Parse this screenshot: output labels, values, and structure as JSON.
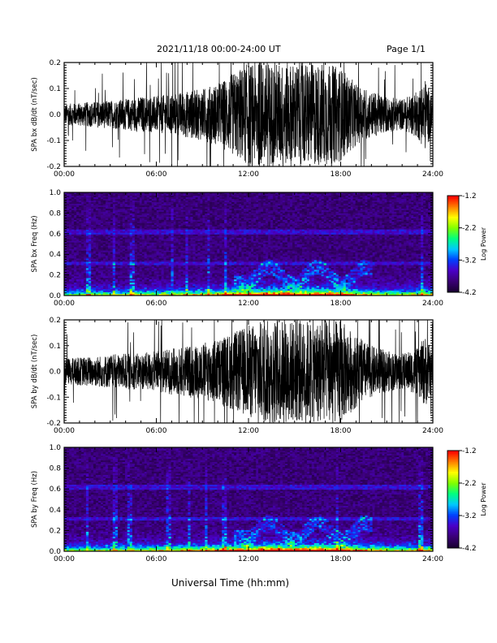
{
  "header": {
    "title": "2021/11/18  00:00-24:00 UT",
    "page": "Page 1/1"
  },
  "footer": {
    "xlabel": "Universal Time (hh:mm)"
  },
  "colors": {
    "trace": "#000000",
    "spectrogram_background": "#1a0a5a",
    "colormap": [
      "#1a0033",
      "#3b0078",
      "#4a00c8",
      "#0040ff",
      "#00c8ff",
      "#00ff80",
      "#80ff00",
      "#ffff00",
      "#ff8000",
      "#ff0000"
    ]
  },
  "chart_data": [
    {
      "type": "line",
      "ylabel": "SPA bx dB/dt (nT/sec)",
      "xlim": [
        "00:00",
        "24:00"
      ],
      "ylim": [
        -0.2,
        0.2
      ],
      "x_tick_labels": [
        "00:00",
        "06:00",
        "12:00",
        "18:00",
        "24:00"
      ],
      "y_tick_labels": [
        "-0.2",
        "-0.1",
        "0.0",
        "0.1",
        "0.2"
      ],
      "amplitude_envelope": {
        "x_hours": [
          0,
          2,
          4,
          5,
          6,
          7,
          8,
          9,
          10,
          11,
          12,
          13,
          14,
          15,
          16,
          17,
          18,
          19,
          20,
          21,
          22,
          23,
          23.5,
          24
        ],
        "y_abs": [
          0.04,
          0.05,
          0.06,
          0.07,
          0.07,
          0.08,
          0.09,
          0.1,
          0.12,
          0.16,
          0.2,
          0.2,
          0.2,
          0.2,
          0.2,
          0.2,
          0.18,
          0.12,
          0.09,
          0.07,
          0.06,
          0.09,
          0.14,
          0.06
        ]
      }
    },
    {
      "type": "heatmap",
      "ylabel": "SPA bx Freq (Hz)",
      "xlim": [
        "00:00",
        "24:00"
      ],
      "ylim": [
        0.0,
        1.0
      ],
      "x_tick_labels": [
        "00:00",
        "06:00",
        "12:00",
        "18:00",
        "24:00"
      ],
      "y_tick_labels": [
        "0.0",
        "0.2",
        "0.4",
        "0.6",
        "0.8",
        "1.0"
      ],
      "colorbar": {
        "label": "Log Power",
        "range": [
          -4.2,
          -1.2
        ],
        "tick_labels": [
          "-1.2",
          "-2.2",
          "-3.2",
          "-4.2"
        ]
      }
    },
    {
      "type": "line",
      "ylabel": "SPA by dB/dt (nT/sec)",
      "xlim": [
        "00:00",
        "24:00"
      ],
      "ylim": [
        -0.2,
        0.2
      ],
      "x_tick_labels": [
        "00:00",
        "06:00",
        "12:00",
        "18:00",
        "24:00"
      ],
      "y_tick_labels": [
        "-0.2",
        "-0.1",
        "0.0",
        "0.1",
        "0.2"
      ],
      "amplitude_envelope": {
        "x_hours": [
          0,
          2,
          4,
          5,
          6,
          7,
          8,
          9,
          10,
          11,
          12,
          13,
          14,
          15,
          16,
          17,
          18,
          19,
          20,
          21,
          22,
          23,
          23.5,
          24
        ],
        "y_abs": [
          0.05,
          0.06,
          0.07,
          0.07,
          0.08,
          0.09,
          0.1,
          0.11,
          0.13,
          0.15,
          0.18,
          0.2,
          0.2,
          0.2,
          0.2,
          0.2,
          0.2,
          0.14,
          0.1,
          0.08,
          0.07,
          0.09,
          0.14,
          0.07
        ]
      }
    },
    {
      "type": "heatmap",
      "ylabel": "SPA by Freq (Hz)",
      "xlim": [
        "00:00",
        "24:00"
      ],
      "ylim": [
        0.0,
        1.0
      ],
      "x_tick_labels": [
        "00:00",
        "06:00",
        "12:00",
        "18:00",
        "24:00"
      ],
      "y_tick_labels": [
        "0.0",
        "0.2",
        "0.4",
        "0.6",
        "0.8",
        "1.0"
      ],
      "colorbar": {
        "label": "Log Power",
        "range": [
          -4.2,
          -1.2
        ],
        "tick_labels": [
          "-1.2",
          "-2.2",
          "-3.2",
          "-4.2"
        ]
      }
    }
  ]
}
